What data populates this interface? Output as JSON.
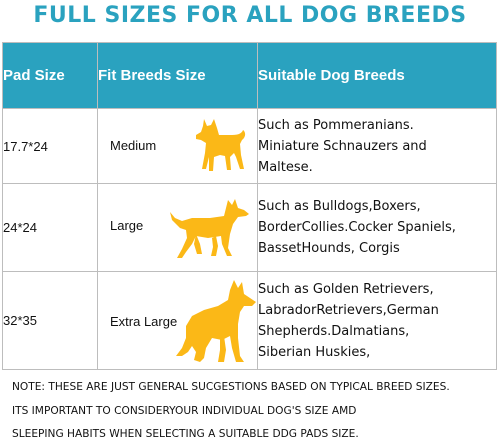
{
  "page": {
    "title": "FULL SIZES FOR ALL DOG BREEDS"
  },
  "table": {
    "headers": [
      "Pad Size",
      "Fit Breeds Size",
      "Suitable Dog Breeds"
    ],
    "rows": [
      {
        "pad_size": "17.7*24",
        "fit_size": "Medium",
        "icon": "medium-dog-icon",
        "breeds": [
          "Such as Pommeranians.",
          "Miniature Schnauzers and",
          "Maltese."
        ]
      },
      {
        "pad_size": "24*24",
        "fit_size": "Large",
        "icon": "large-dog-icon",
        "breeds": [
          "Such as Bulldogs,Boxers,",
          "BorderCollies.Cocker Spaniels,",
          "BassetHounds, Corgis"
        ]
      },
      {
        "pad_size": "32*35",
        "fit_size": "Extra Large",
        "icon": "extra-large-dog-icon",
        "breeds": [
          "Such as Golden Retrievers,",
          "LabradorRetrievers,German",
          "Shepherds.Dalmatians,",
          "Siberian Huskies,"
        ]
      }
    ]
  },
  "note": [
    "NOTE: THESE ARE JUST GENERAL SUCGESTIONS BASED ON TYPICAL BREED SIZES.",
    "ITS IMPORTANT TO CONSIDERYOUR INDIVIDUAL DOG'S SIZE AMD",
    "SLEEPING HABITS WHEN SELECTING A SUITABLE DDG PADS SIZE."
  ],
  "colors": {
    "header_bg": "#2aa2bf",
    "title": "#2aa2bf",
    "dog": "#fbb817",
    "border": "#bdbdbd"
  }
}
